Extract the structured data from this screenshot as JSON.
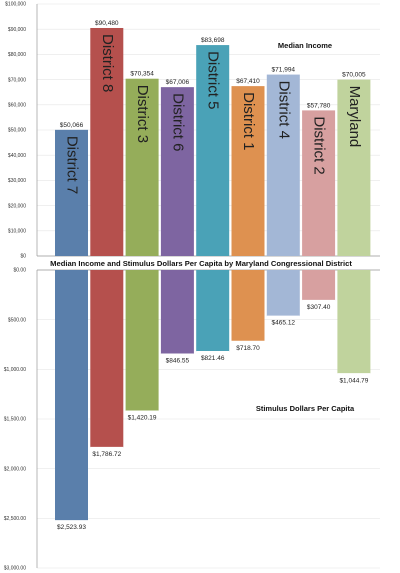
{
  "chart_title": "Median Income and Stimulus Dollars Per Capita by Maryland Congressional District",
  "chart_data": [
    {
      "type": "bar",
      "title": "Median Income",
      "categories": [
        "District 7",
        "District 8",
        "District 3",
        "District 6",
        "District 5",
        "District 1",
        "District 4",
        "District 2",
        "Maryland"
      ],
      "values": [
        50066,
        90480,
        70354,
        67006,
        83698,
        67410,
        71994,
        57780,
        70005
      ],
      "data_labels": [
        "$50,066",
        "$90,480",
        "$70,354",
        "$67,006",
        "$83,698",
        "$67,410",
        "$71,994",
        "$57,780",
        "$70,005"
      ],
      "colors": [
        "#5a7fab",
        "#b5504d",
        "#95ad5a",
        "#7e65a1",
        "#4aa2b7",
        "#de9150",
        "#a3b7d6",
        "#d7a0a0",
        "#c0d39d"
      ],
      "ylim": [
        0,
        100000
      ],
      "yticks": [
        "$0",
        "$10,000",
        "$20,000",
        "$30,000",
        "$40,000",
        "$50,000",
        "$60,000",
        "$70,000",
        "$80,000",
        "$90,000",
        "$100,000"
      ],
      "grid": true
    },
    {
      "type": "bar",
      "title": "Stimulus Dollars Per Capita",
      "categories": [
        "District 7",
        "District 8",
        "District 3",
        "District 6",
        "District 5",
        "District 1",
        "District 4",
        "District 2",
        "Maryland"
      ],
      "values": [
        2523.93,
        1786.72,
        1420.19,
        846.55,
        821.46,
        718.7,
        465.12,
        307.4,
        1044.79
      ],
      "data_labels": [
        "$2,523.93",
        "$1,786.72",
        "$1,420.19",
        "$846.55",
        "$821.46",
        "$718.70",
        "$465.12",
        "$307.40",
        "$1,044.79"
      ],
      "colors": [
        "#5a7fab",
        "#b5504d",
        "#95ad5a",
        "#7e65a1",
        "#4aa2b7",
        "#de9150",
        "#a3b7d6",
        "#d7a0a0",
        "#c0d39d"
      ],
      "ylim": [
        0,
        3000
      ],
      "inverted_axis": true,
      "yticks": [
        "$0.00",
        "$500.00",
        "$1,000.00",
        "$1,500.00",
        "$2,000.00",
        "$2,500.00",
        "$3,000.00"
      ],
      "grid": true
    }
  ]
}
